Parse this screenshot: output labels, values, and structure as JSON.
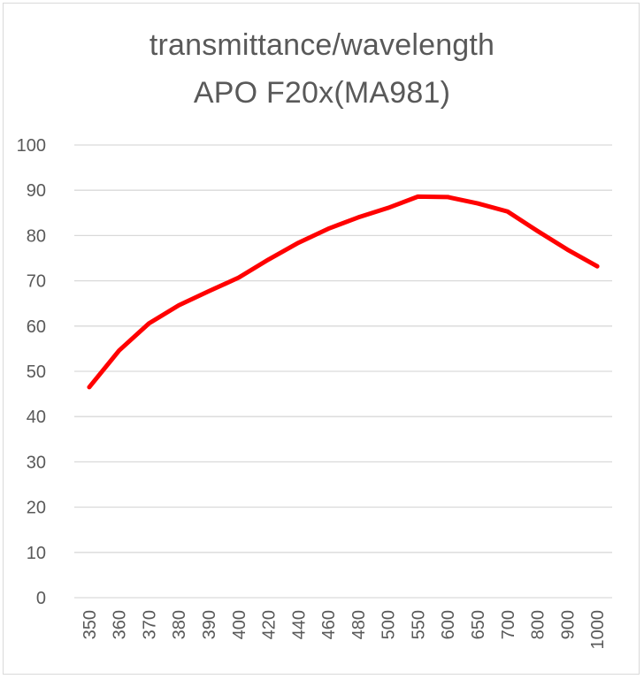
{
  "chart_data": {
    "type": "line",
    "title_lines": [
      "transmittance/wavelength",
      "APO F20x(MA981)"
    ],
    "xlabel": "",
    "ylabel": "",
    "categories": [
      "350",
      "360",
      "370",
      "380",
      "390",
      "400",
      "420",
      "440",
      "460",
      "480",
      "500",
      "550",
      "600",
      "650",
      "700",
      "800",
      "900",
      "1000"
    ],
    "series": [
      {
        "name": "transmittance",
        "color": "#ff0000",
        "values": [
          46.5,
          54.6,
          60.6,
          64.6,
          67.7,
          70.7,
          74.7,
          78.4,
          81.5,
          84.0,
          86.1,
          88.6,
          88.5,
          87.1,
          85.3,
          81.0,
          76.9,
          73.2
        ]
      }
    ],
    "ylim": [
      0,
      100
    ],
    "y_ticks": [
      0,
      10,
      20,
      30,
      40,
      50,
      60,
      70,
      80,
      90,
      100
    ],
    "grid": true,
    "gridline_color": "#d9d9d9",
    "tick_label_color": "#595959"
  }
}
